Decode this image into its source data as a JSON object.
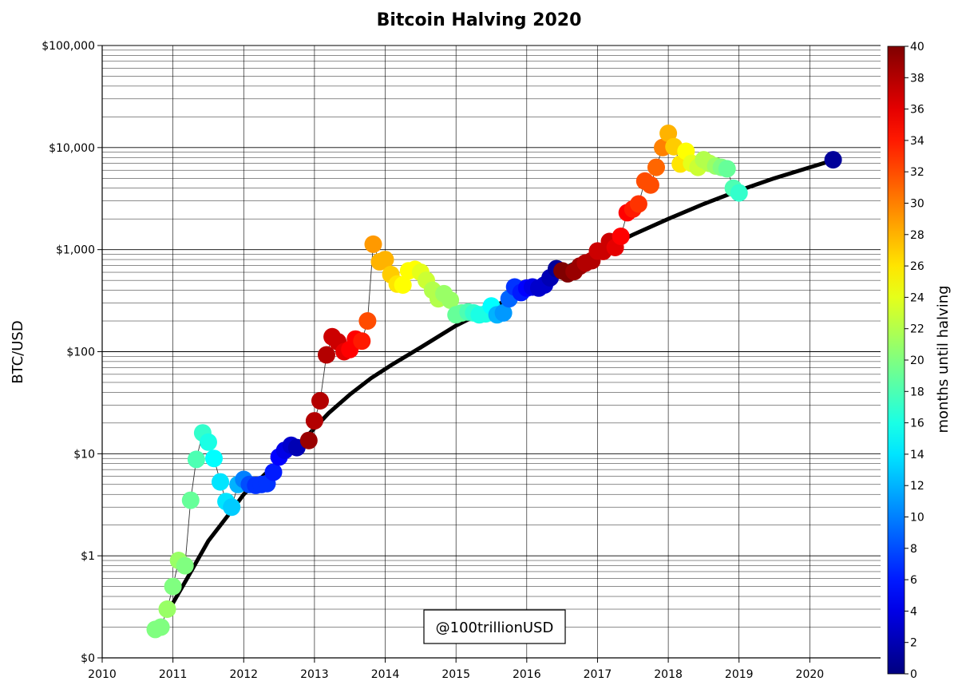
{
  "chart_data": {
    "type": "scatter",
    "title": "Bitcoin Halving 2020",
    "ylabel": "BTC/USD",
    "xlabel": "",
    "x_ticks": [
      "2010",
      "2011",
      "2012",
      "2013",
      "2014",
      "2015",
      "2016",
      "2017",
      "2018",
      "2019",
      "2020"
    ],
    "x_range": [
      2010,
      2021
    ],
    "y_scale": "log",
    "y_range": [
      0.1,
      100000
    ],
    "y_ticks": [
      {
        "value": 0.1,
        "label": "$0"
      },
      {
        "value": 1,
        "label": "$1"
      },
      {
        "value": 10,
        "label": "$10"
      },
      {
        "value": 100,
        "label": "$100"
      },
      {
        "value": 1000,
        "label": "$1,000"
      },
      {
        "value": 10000,
        "label": "$10,000"
      },
      {
        "value": 100000,
        "label": "$100,000"
      }
    ],
    "grid": true,
    "colorbar": {
      "label": "months until halving",
      "min": 0,
      "max": 40,
      "ticks": [
        0,
        2,
        4,
        6,
        8,
        10,
        12,
        14,
        16,
        18,
        20,
        22,
        24,
        26,
        28,
        30,
        32,
        34,
        36,
        38,
        40
      ],
      "colormap": "jet"
    },
    "watermark": "@100trillionUSD",
    "model_curve": {
      "name": "",
      "color": "#000000",
      "points": [
        [
          2010.95,
          0.3
        ],
        [
          2011.2,
          0.6
        ],
        [
          2011.5,
          1.4
        ],
        [
          2011.8,
          2.6
        ],
        [
          2012.0,
          4.0
        ],
        [
          2012.3,
          6.3
        ],
        [
          2012.6,
          10
        ],
        [
          2012.9,
          15
        ],
        [
          2013.2,
          25
        ],
        [
          2013.5,
          38
        ],
        [
          2013.8,
          55
        ],
        [
          2014.1,
          75
        ],
        [
          2014.5,
          110
        ],
        [
          2015.0,
          180
        ],
        [
          2015.5,
          270
        ],
        [
          2016.0,
          400
        ],
        [
          2016.5,
          640
        ],
        [
          2017.0,
          950
        ],
        [
          2017.5,
          1400
        ],
        [
          2018.0,
          2000
        ],
        [
          2018.5,
          2800
        ],
        [
          2019.0,
          3800
        ],
        [
          2019.5,
          5000
        ],
        [
          2020.0,
          6400
        ],
        [
          2020.35,
          7600
        ]
      ]
    },
    "series": [
      {
        "points": [
          [
            2010.75,
            0.19,
            20
          ],
          [
            2010.83,
            0.2,
            20
          ],
          [
            2010.92,
            0.3,
            21
          ],
          [
            2011.0,
            0.5,
            20
          ],
          [
            2011.08,
            0.9,
            21
          ],
          [
            2011.17,
            0.8,
            20
          ],
          [
            2011.25,
            3.5,
            19
          ],
          [
            2011.33,
            8.8,
            18
          ],
          [
            2011.42,
            16,
            17
          ],
          [
            2011.5,
            13,
            16
          ],
          [
            2011.58,
            9,
            15
          ],
          [
            2011.67,
            5.3,
            14
          ],
          [
            2011.75,
            3.4,
            14
          ],
          [
            2011.83,
            3.0,
            13
          ],
          [
            2011.92,
            5,
            12
          ],
          [
            2012.0,
            5.6,
            10
          ],
          [
            2012.08,
            5,
            8
          ],
          [
            2012.17,
            4.9,
            7
          ],
          [
            2012.25,
            5,
            7
          ],
          [
            2012.33,
            5.1,
            7
          ],
          [
            2012.42,
            6.6,
            6
          ],
          [
            2012.5,
            9.3,
            5
          ],
          [
            2012.58,
            10.8,
            4
          ],
          [
            2012.67,
            12.1,
            3
          ],
          [
            2012.75,
            11.5,
            2
          ],
          [
            2012.92,
            13.5,
            39
          ],
          [
            2013.0,
            21,
            38
          ],
          [
            2013.08,
            33,
            38
          ],
          [
            2013.17,
            93,
            38
          ],
          [
            2013.25,
            140,
            37
          ],
          [
            2013.33,
            125,
            37
          ],
          [
            2013.42,
            100,
            36
          ],
          [
            2013.5,
            105,
            35
          ],
          [
            2013.58,
            133,
            35
          ],
          [
            2013.67,
            127,
            34
          ],
          [
            2013.75,
            200,
            32
          ],
          [
            2013.83,
            1130,
            29
          ],
          [
            2013.92,
            760,
            28
          ],
          [
            2014.0,
            800,
            28
          ],
          [
            2014.08,
            570,
            27
          ],
          [
            2014.17,
            460,
            26
          ],
          [
            2014.25,
            450,
            25
          ],
          [
            2014.33,
            620,
            25
          ],
          [
            2014.42,
            640,
            25
          ],
          [
            2014.5,
            600,
            24
          ],
          [
            2014.58,
            500,
            23
          ],
          [
            2014.67,
            400,
            22
          ],
          [
            2014.75,
            330,
            22
          ],
          [
            2014.83,
            370,
            21
          ],
          [
            2014.92,
            320,
            21
          ],
          [
            2015.0,
            230,
            19
          ],
          [
            2015.08,
            240,
            19
          ],
          [
            2015.17,
            245,
            18
          ],
          [
            2015.25,
            240,
            17
          ],
          [
            2015.33,
            230,
            16
          ],
          [
            2015.42,
            235,
            16
          ],
          [
            2015.5,
            280,
            15
          ],
          [
            2015.58,
            230,
            12
          ],
          [
            2015.67,
            240,
            11
          ],
          [
            2015.75,
            330,
            9
          ],
          [
            2015.83,
            430,
            7
          ],
          [
            2015.92,
            380,
            6
          ],
          [
            2016.0,
            420,
            5
          ],
          [
            2016.08,
            430,
            4
          ],
          [
            2016.17,
            420,
            3
          ],
          [
            2016.25,
            450,
            3
          ],
          [
            2016.33,
            530,
            2
          ],
          [
            2016.42,
            650,
            1
          ],
          [
            2016.5,
            620,
            40
          ],
          [
            2016.58,
            580,
            40
          ],
          [
            2016.67,
            610,
            39
          ],
          [
            2016.75,
            690,
            39
          ],
          [
            2016.83,
            740,
            38
          ],
          [
            2016.92,
            780,
            38
          ],
          [
            2017.0,
            970,
            37
          ],
          [
            2017.08,
            960,
            37
          ],
          [
            2017.17,
            1200,
            37
          ],
          [
            2017.25,
            1050,
            36
          ],
          [
            2017.33,
            1350,
            35
          ],
          [
            2017.42,
            2300,
            35
          ],
          [
            2017.5,
            2500,
            34
          ],
          [
            2017.58,
            2800,
            33
          ],
          [
            2017.67,
            4700,
            32
          ],
          [
            2017.75,
            4300,
            32
          ],
          [
            2017.83,
            6400,
            31
          ],
          [
            2017.92,
            10000,
            30
          ],
          [
            2018.0,
            13800,
            28
          ],
          [
            2018.08,
            10200,
            27
          ],
          [
            2018.17,
            6900,
            26
          ],
          [
            2018.25,
            9200,
            25
          ],
          [
            2018.33,
            7000,
            24
          ],
          [
            2018.42,
            6400,
            23
          ],
          [
            2018.5,
            7600,
            22
          ],
          [
            2018.58,
            7000,
            22
          ],
          [
            2018.67,
            6600,
            21
          ],
          [
            2018.75,
            6400,
            20
          ],
          [
            2018.83,
            6200,
            19
          ],
          [
            2018.92,
            4000,
            18
          ],
          [
            2019.0,
            3600,
            17
          ],
          [
            2020.33,
            7600,
            1
          ]
        ]
      }
    ]
  }
}
